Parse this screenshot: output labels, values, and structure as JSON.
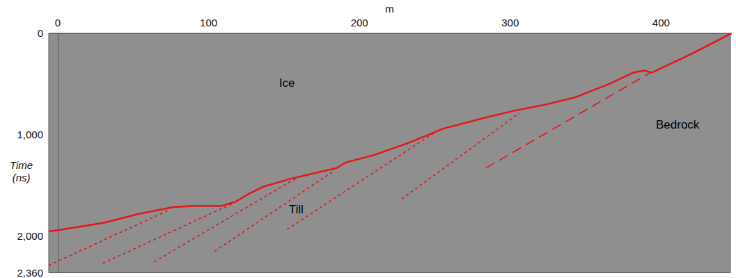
{
  "chart_data": {
    "type": "line",
    "x_label": "m",
    "y_label": "Time (ns)",
    "xlim": [
      -6,
      446
    ],
    "xticks": [
      0,
      100,
      200,
      300,
      400
    ],
    "ylim": [
      0,
      2360
    ],
    "yticks": [
      0,
      1000,
      2000
    ],
    "grid": false,
    "series": [
      {
        "color": "#e8141b",
        "line_style": "solid",
        "x": [
          -6,
          0,
          30.7,
          53.7,
          76.6,
          90.4,
          108.7,
          117.9,
          127,
          136,
          154.6,
          177.5,
          185,
          191,
          209.6,
          232.6,
          255.5,
          283,
          301.4,
          324,
          342.7,
          365.6,
          381.7,
          388.5,
          394,
          420.6,
          446.8
        ],
        "values": [
          1953,
          1940,
          1867,
          1780,
          1713,
          1700,
          1700,
          1660,
          1580,
          1513,
          1433,
          1353,
          1327,
          1273,
          1200,
          1080,
          940,
          833,
          767,
          700,
          633,
          500,
          387,
          367,
          387,
          200,
          0
        ]
      },
      {
        "color": "#e8141b",
        "line_style": "dashed",
        "x": [
          -6,
          73
        ],
        "values": [
          2287,
          1747
        ]
      },
      {
        "color": "#e8141b",
        "line_style": "dashed",
        "x": [
          29.8,
          115.6
        ],
        "values": [
          2267,
          1680
        ]
      },
      {
        "color": "#e8141b",
        "line_style": "dashed",
        "x": [
          63.8,
          159
        ],
        "values": [
          2253,
          1420
        ]
      },
      {
        "color": "#e8141b",
        "line_style": "dashed",
        "x": [
          104,
          182
        ],
        "values": [
          2147,
          1367
        ]
      },
      {
        "color": "#e8141b",
        "line_style": "dashed",
        "x": [
          152,
          251
        ],
        "values": [
          1933,
          967
        ]
      },
      {
        "color": "#e8141b",
        "line_style": "dashed",
        "x": [
          228,
          306
        ],
        "values": [
          1633,
          787
        ]
      },
      {
        "color": "#e8141b",
        "line_style": "long_dashed",
        "x": [
          284,
          393
        ],
        "values": [
          1327,
          387
        ]
      }
    ],
    "annotations": [
      {
        "text": "Ice",
        "x": 152,
        "y": 487
      },
      {
        "text": "Till",
        "x": 158,
        "y": 1740
      },
      {
        "text": "Bedrock",
        "x": 411,
        "y": 900
      }
    ]
  }
}
